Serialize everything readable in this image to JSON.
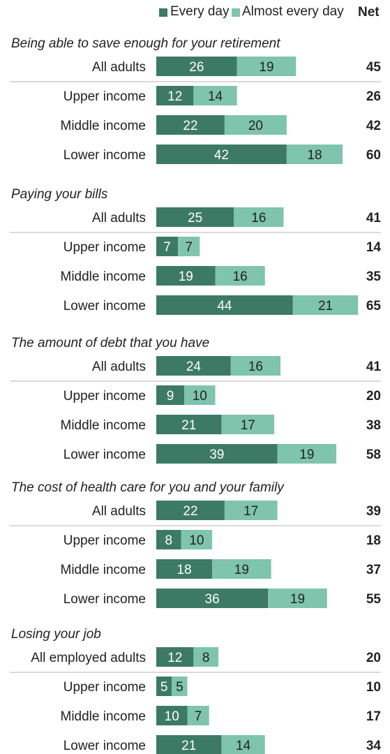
{
  "legend": {
    "every_day": "Every day",
    "almost_every_day": "Almost every day",
    "net": "Net"
  },
  "colors": {
    "every_day": "#3d7a65",
    "almost_every_day": "#7fc4ad",
    "divider": "#b5b5b5"
  },
  "chart_data": {
    "type": "bar",
    "orientation": "horizontal",
    "stacked": true,
    "series": [
      {
        "name": "Every day"
      },
      {
        "name": "Almost every day"
      }
    ],
    "groups": [
      {
        "title": "Being able to save enough for your retirement",
        "rows": [
          {
            "label": "All adults",
            "every_day": 26,
            "almost_every_day": 19,
            "net": 45
          },
          {
            "label": "Upper income",
            "every_day": 12,
            "almost_every_day": 14,
            "net": 26
          },
          {
            "label": "Middle income",
            "every_day": 22,
            "almost_every_day": 20,
            "net": 42
          },
          {
            "label": "Lower income",
            "every_day": 42,
            "almost_every_day": 18,
            "net": 60
          }
        ]
      },
      {
        "title": "Paying your bills",
        "rows": [
          {
            "label": "All adults",
            "every_day": 25,
            "almost_every_day": 16,
            "net": 41
          },
          {
            "label": "Upper income",
            "every_day": 7,
            "almost_every_day": 7,
            "net": 14
          },
          {
            "label": "Middle income",
            "every_day": 19,
            "almost_every_day": 16,
            "net": 35
          },
          {
            "label": "Lower income",
            "every_day": 44,
            "almost_every_day": 21,
            "net": 65
          }
        ]
      },
      {
        "title": "The amount of debt that you have",
        "rows": [
          {
            "label": "All adults",
            "every_day": 24,
            "almost_every_day": 16,
            "net": 41
          },
          {
            "label": "Upper income",
            "every_day": 9,
            "almost_every_day": 10,
            "net": 20
          },
          {
            "label": "Middle income",
            "every_day": 21,
            "almost_every_day": 17,
            "net": 38
          },
          {
            "label": "Lower income",
            "every_day": 39,
            "almost_every_day": 19,
            "net": 58
          }
        ]
      },
      {
        "title": "The cost of health care for you and your family",
        "rows": [
          {
            "label": "All adults",
            "every_day": 22,
            "almost_every_day": 17,
            "net": 39
          },
          {
            "label": "Upper income",
            "every_day": 8,
            "almost_every_day": 10,
            "net": 18
          },
          {
            "label": "Middle income",
            "every_day": 18,
            "almost_every_day": 19,
            "net": 37
          },
          {
            "label": "Lower income",
            "every_day": 36,
            "almost_every_day": 19,
            "net": 55
          }
        ]
      },
      {
        "title": "Losing your job",
        "rows": [
          {
            "label": "All employed adults",
            "every_day": 12,
            "almost_every_day": 8,
            "net": 20
          },
          {
            "label": "Upper income",
            "every_day": 5,
            "almost_every_day": 5,
            "net": 10
          },
          {
            "label": "Middle income",
            "every_day": 10,
            "almost_every_day": 7,
            "net": 17
          },
          {
            "label": "Lower income",
            "every_day": 21,
            "almost_every_day": 14,
            "net": 34
          }
        ]
      }
    ]
  }
}
